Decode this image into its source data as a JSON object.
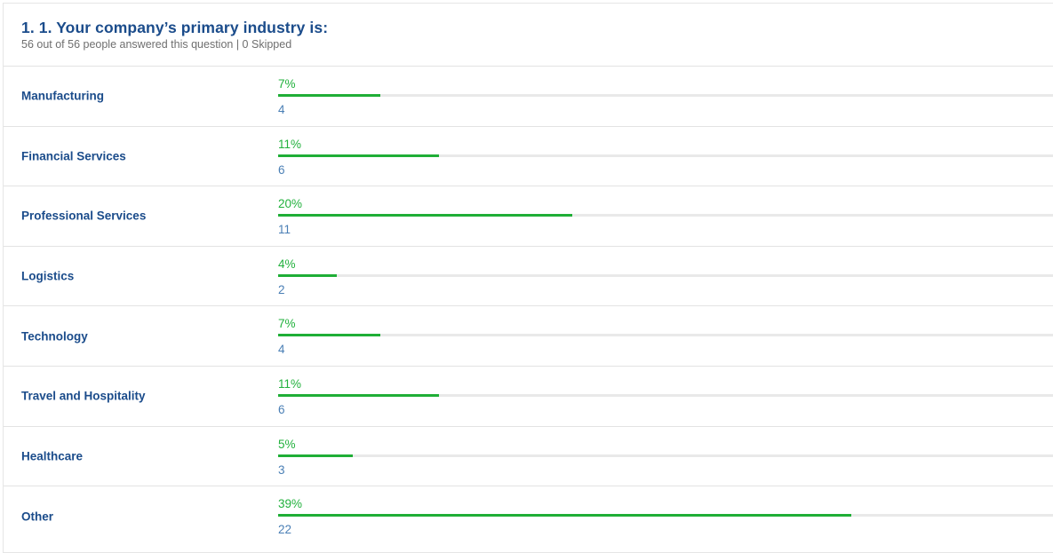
{
  "question": {
    "title": "1. 1. Your company’s primary industry is:",
    "summary": "56 out of 56 people answered this question | 0 Skipped"
  },
  "colors": {
    "title": "#1b4c8b",
    "percent": "#22b13d",
    "bar_fill": "#1fae36",
    "bar_track": "#e9e9e9",
    "count": "#4a7fb5"
  },
  "answers": [
    {
      "label": "Manufacturing",
      "percent": "7%",
      "count": "4",
      "fraction": 0.131
    },
    {
      "label": "Financial Services",
      "percent": "11%",
      "count": "6",
      "fraction": 0.206
    },
    {
      "label": "Professional Services",
      "percent": "20%",
      "count": "11",
      "fraction": 0.3762
    },
    {
      "label": "Logistics",
      "percent": "4%",
      "count": "2",
      "fraction": 0.075
    },
    {
      "label": "Technology",
      "percent": "7%",
      "count": "4",
      "fraction": 0.131
    },
    {
      "label": "Travel and Hospitality",
      "percent": "11%",
      "count": "6",
      "fraction": 0.206
    },
    {
      "label": "Healthcare",
      "percent": "5%",
      "count": "3",
      "fraction": 0.095
    },
    {
      "label": "Other",
      "percent": "39%",
      "count": "22",
      "fraction": 0.7325
    }
  ]
}
